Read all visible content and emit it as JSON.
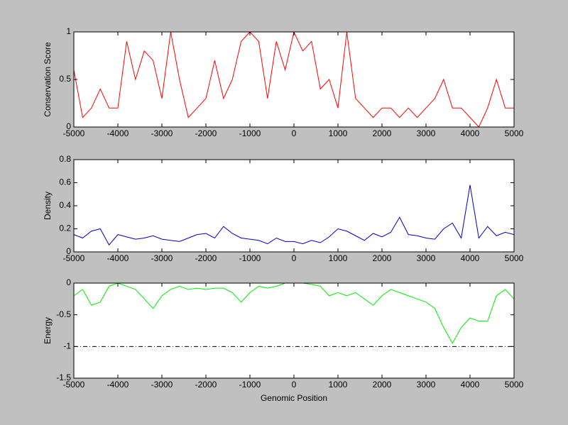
{
  "chart_data": [
    {
      "type": "line",
      "ylabel": "Conservation Score",
      "color": "#ff0000",
      "x": [
        -5000,
        -4800,
        -4600,
        -4400,
        -4200,
        -4000,
        -3800,
        -3600,
        -3400,
        -3200,
        -3000,
        -2800,
        -2600,
        -2400,
        -2200,
        -2000,
        -1800,
        -1600,
        -1400,
        -1200,
        -1000,
        -800,
        -600,
        -400,
        -200,
        0,
        200,
        400,
        600,
        800,
        1000,
        1200,
        1400,
        1600,
        1800,
        2000,
        2200,
        2400,
        2600,
        2800,
        3000,
        3200,
        3400,
        3600,
        3800,
        4000,
        4200,
        4400,
        4600,
        4800,
        5000
      ],
      "values": [
        0.6,
        0.1,
        0.2,
        0.4,
        0.2,
        0.2,
        0.9,
        0.5,
        0.8,
        0.7,
        0.3,
        1.0,
        0.5,
        0.1,
        0.2,
        0.3,
        0.7,
        0.3,
        0.5,
        0.9,
        1.0,
        0.9,
        0.3,
        0.9,
        0.6,
        1.0,
        0.8,
        0.9,
        0.4,
        0.5,
        0.2,
        1.0,
        0.3,
        0.2,
        0.1,
        0.2,
        0.2,
        0.1,
        0.2,
        0.1,
        0.2,
        0.3,
        0.5,
        0.2,
        0.2,
        0.1,
        0.0,
        0.2,
        0.5,
        0.2,
        0.2
      ],
      "xlim": [
        -5000,
        5000
      ],
      "ylim": [
        0,
        1
      ],
      "xticks": [
        -5000,
        -4000,
        -3000,
        -2000,
        -1000,
        0,
        1000,
        2000,
        3000,
        4000,
        5000
      ],
      "yticks": [
        0,
        0.5,
        1
      ]
    },
    {
      "type": "line",
      "ylabel": "Density",
      "color": "#0000cc",
      "x": [
        -5000,
        -4800,
        -4600,
        -4400,
        -4200,
        -4000,
        -3800,
        -3600,
        -3400,
        -3200,
        -3000,
        -2800,
        -2600,
        -2400,
        -2200,
        -2000,
        -1800,
        -1600,
        -1400,
        -1200,
        -1000,
        -800,
        -600,
        -400,
        -200,
        0,
        200,
        400,
        600,
        800,
        1000,
        1200,
        1400,
        1600,
        1800,
        2000,
        2200,
        2400,
        2600,
        2800,
        3000,
        3200,
        3400,
        3600,
        3800,
        4000,
        4200,
        4400,
        4600,
        4800,
        5000
      ],
      "values": [
        0.15,
        0.12,
        0.18,
        0.2,
        0.06,
        0.15,
        0.13,
        0.11,
        0.12,
        0.14,
        0.11,
        0.1,
        0.09,
        0.12,
        0.15,
        0.16,
        0.12,
        0.22,
        0.16,
        0.12,
        0.11,
        0.1,
        0.07,
        0.12,
        0.09,
        0.09,
        0.07,
        0.1,
        0.08,
        0.13,
        0.2,
        0.18,
        0.14,
        0.1,
        0.16,
        0.13,
        0.17,
        0.3,
        0.15,
        0.14,
        0.12,
        0.11,
        0.2,
        0.25,
        0.12,
        0.58,
        0.12,
        0.22,
        0.14,
        0.17,
        0.15
      ],
      "xlim": [
        -5000,
        5000
      ],
      "ylim": [
        0,
        0.8
      ],
      "xticks": [
        -5000,
        -4000,
        -3000,
        -2000,
        -1000,
        0,
        1000,
        2000,
        3000,
        4000,
        5000
      ],
      "yticks": [
        0,
        0.2,
        0.4,
        0.6,
        0.8
      ]
    },
    {
      "type": "line",
      "ylabel": "Energy",
      "xlabel": "Genomic Position",
      "color": "#00ee00",
      "x": [
        -5000,
        -4800,
        -4600,
        -4400,
        -4200,
        -4000,
        -3800,
        -3600,
        -3400,
        -3200,
        -3000,
        -2800,
        -2600,
        -2400,
        -2200,
        -2000,
        -1800,
        -1600,
        -1400,
        -1200,
        -1000,
        -800,
        -600,
        -400,
        -200,
        0,
        200,
        400,
        600,
        800,
        1000,
        1200,
        1400,
        1600,
        1800,
        2000,
        2200,
        2400,
        2600,
        2800,
        3000,
        3200,
        3400,
        3600,
        3800,
        4000,
        4200,
        4400,
        4600,
        4800,
        5000
      ],
      "values": [
        -0.2,
        -0.1,
        -0.35,
        -0.3,
        -0.05,
        0,
        -0.05,
        -0.1,
        -0.25,
        -0.4,
        -0.2,
        -0.1,
        -0.05,
        -0.1,
        -0.08,
        -0.1,
        -0.08,
        -0.08,
        -0.15,
        -0.3,
        -0.15,
        -0.05,
        -0.08,
        -0.05,
        0,
        0,
        0,
        -0.02,
        -0.05,
        -0.2,
        -0.15,
        -0.2,
        -0.15,
        -0.25,
        -0.35,
        -0.2,
        -0.1,
        -0.15,
        -0.2,
        -0.25,
        -0.3,
        -0.4,
        -0.7,
        -0.95,
        -0.7,
        -0.55,
        -0.6,
        -0.6,
        -0.2,
        -0.1,
        -0.25
      ],
      "hline": -1,
      "xlim": [
        -5000,
        5000
      ],
      "ylim": [
        -1.5,
        0
      ],
      "xticks": [
        -5000,
        -4000,
        -3000,
        -2000,
        -1000,
        0,
        1000,
        2000,
        3000,
        4000,
        5000
      ],
      "yticks": [
        -1.5,
        -1,
        -0.5,
        0
      ]
    }
  ]
}
